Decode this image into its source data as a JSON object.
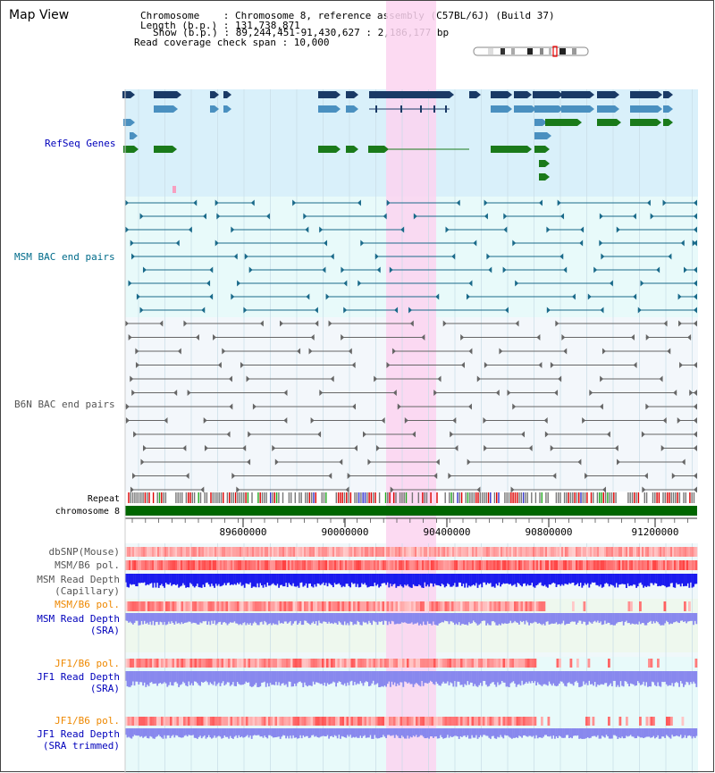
{
  "title": "Map View",
  "header": {
    "chromosome_line": "Chromosome    : Chromosome 8, reference assembly (C57BL/6J) (Build 37)",
    "length_line": "Length (b.p.) : 131,738,871",
    "show_line": "Show (b.p.) : 89,244,451-91,430,627 : 2,186,177 bp",
    "coverage_line": "Read coverage check span : 10,000"
  },
  "tracks": {
    "refseq": {
      "label": "RefSeq Genes",
      "color": "#0000cc"
    },
    "msm_bac": {
      "label": "MSM BAC end pairs",
      "color": "#006b8a"
    },
    "b6n_bac": {
      "label": "B6N BAC end pairs",
      "color": "#555555"
    },
    "repeat": {
      "label": "Repeat"
    },
    "chromosome": {
      "label": "chromosome 8"
    },
    "dbsnp": {
      "label": "dbSNP(Mouse)"
    },
    "msm_pol": {
      "label": "MSM/B6 pol."
    },
    "msm_depth_cap": {
      "label": "MSM Read Depth",
      "sub": "(Capillary)"
    },
    "msm_pol_sra": {
      "label": "MSM/B6 pol."
    },
    "msm_depth_sra": {
      "label": "MSM Read Depth",
      "sub": "(SRA)"
    },
    "jf1_pol": {
      "label": "JF1/B6 pol."
    },
    "jf1_depth": {
      "label": "JF1 Read Depth",
      "sub": "(SRA)"
    },
    "jf1_pol2": {
      "label": "JF1/B6 pol."
    },
    "jf1_depth_trim": {
      "label": "JF1 Read Depth",
      "sub": "(SRA trimmed)"
    }
  },
  "ruler": {
    "ticks": [
      "89600000",
      "90000000",
      "90400000",
      "90800000",
      "91200000"
    ]
  },
  "colors": {
    "refseq_bg": "#d9f0fa",
    "bac_bg": "#e8fafa",
    "highlight": "#fcd4f0",
    "chrom_bar": "#006600",
    "gene_dark": "#1a3a66",
    "gene_mid": "#4a90c0",
    "gene_green": "#1a7a1a",
    "msm_line": "#1a6a8a",
    "b6n_line": "#666666",
    "depth_dark": "#1a1aee",
    "depth_light": "#8888ee",
    "pol_orange": "#ee8800",
    "label_blue": "#0000bb"
  }
}
